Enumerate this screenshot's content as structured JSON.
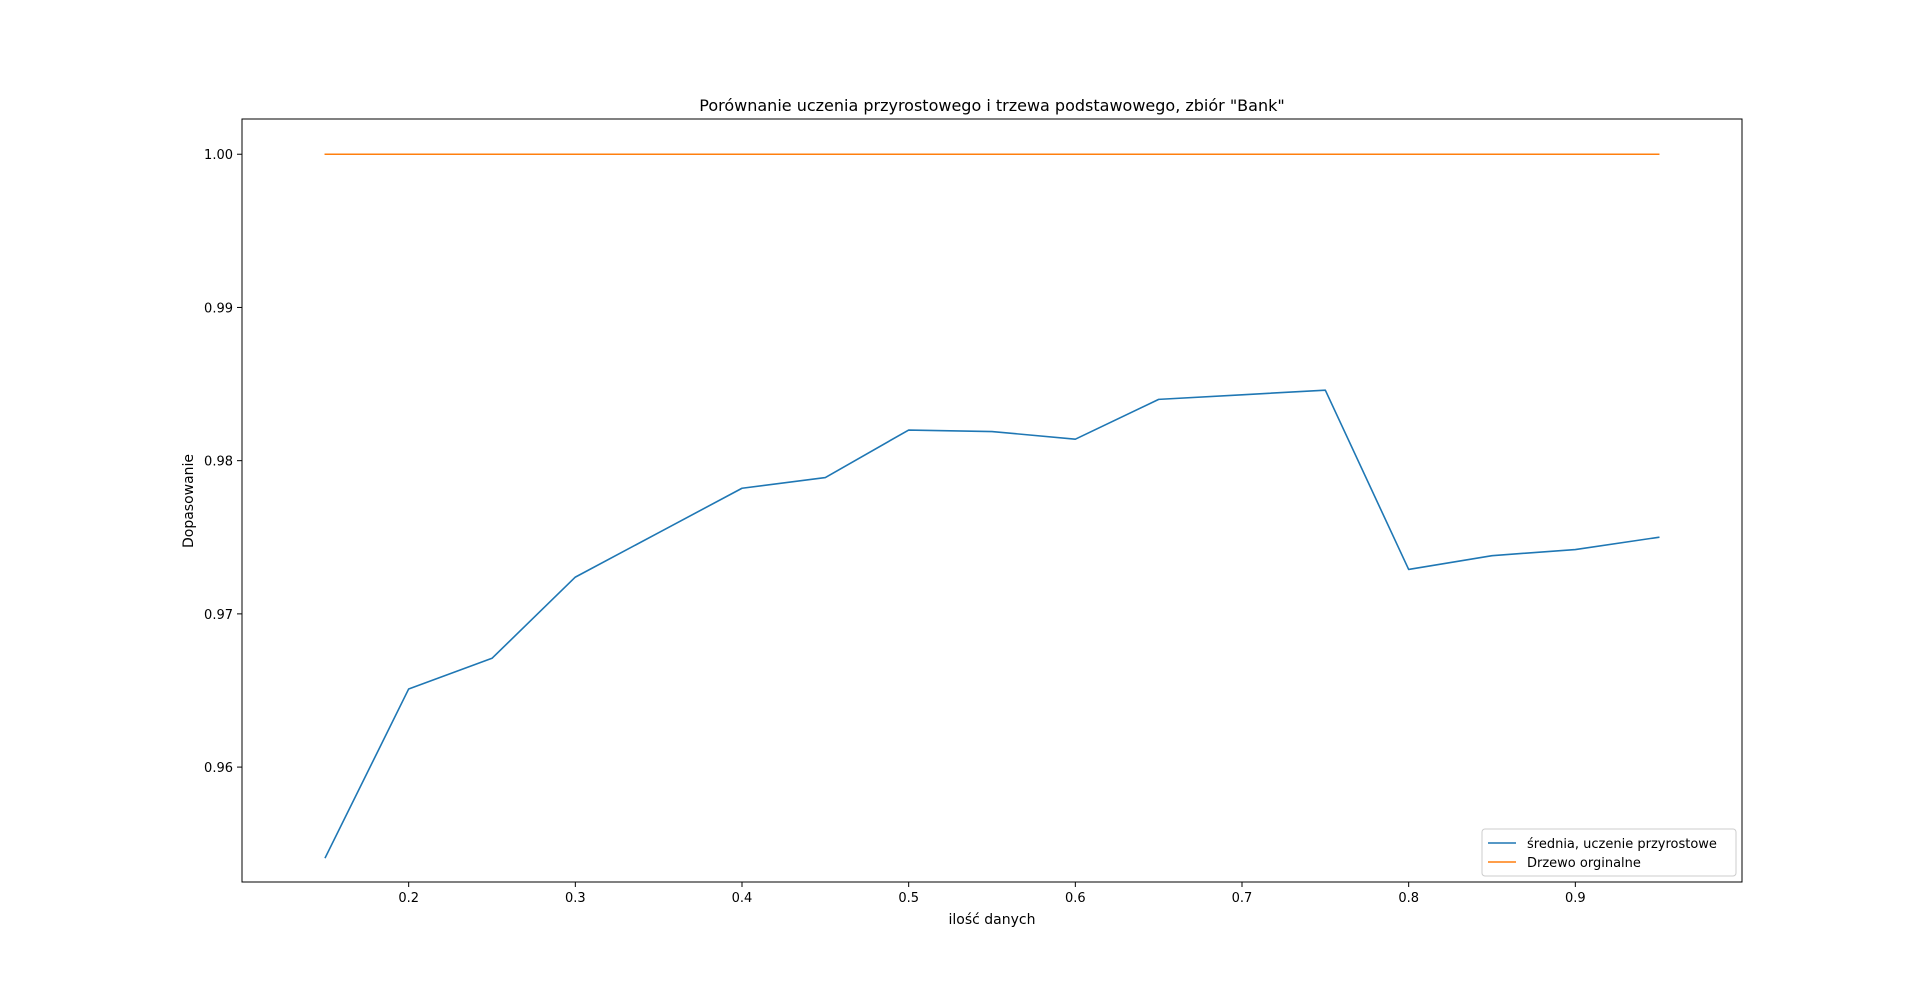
{
  "chart_data": {
    "type": "line",
    "title": "Porównanie uczenia przyrostowego i trzewa podstawowego, zbiór \"Bank\"",
    "xlabel": "ilość danych",
    "ylabel": "Dopasowanie",
    "xlim": [
      0.1,
      1.0
    ],
    "ylim": [
      0.9525,
      1.0023
    ],
    "xticks": [
      0.2,
      0.3,
      0.4,
      0.5,
      0.6,
      0.7,
      0.8,
      0.9
    ],
    "xtick_labels": [
      "0.2",
      "0.3",
      "0.4",
      "0.5",
      "0.6",
      "0.7",
      "0.8",
      "0.9"
    ],
    "yticks": [
      0.96,
      0.97,
      0.98,
      0.99,
      1.0
    ],
    "ytick_labels": [
      "0.96",
      "0.97",
      "0.98",
      "0.99",
      "1.00"
    ],
    "grid": false,
    "legend_position": "bottom-right",
    "x": [
      0.15,
      0.2,
      0.25,
      0.3,
      0.35,
      0.4,
      0.45,
      0.5,
      0.55,
      0.6,
      0.65,
      0.7,
      0.75,
      0.8,
      0.85,
      0.9,
      0.95
    ],
    "series": [
      {
        "name": "średnia, uczenie przyrostowe",
        "color": "#1f77b4",
        "values": [
          0.9541,
          0.9651,
          0.9671,
          0.9724,
          0.9753,
          0.9782,
          0.9789,
          0.982,
          0.9819,
          0.9814,
          0.984,
          0.9843,
          0.9846,
          0.9729,
          0.9738,
          0.9742,
          0.975
        ]
      },
      {
        "name": "Drzewo orginalne",
        "color": "#ff7f0e",
        "values": [
          1.0,
          1.0,
          1.0,
          1.0,
          1.0,
          1.0,
          1.0,
          1.0,
          1.0,
          1.0,
          1.0,
          1.0,
          1.0,
          1.0,
          1.0,
          1.0,
          1.0
        ]
      }
    ]
  }
}
